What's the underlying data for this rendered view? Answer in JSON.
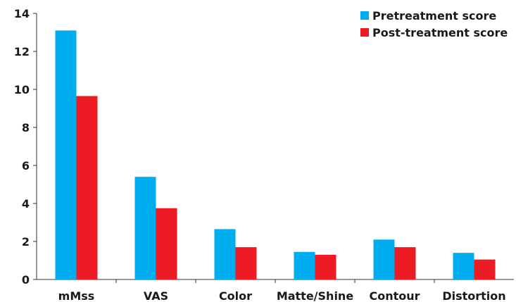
{
  "chart_data": {
    "type": "bar",
    "title": "",
    "xlabel": "",
    "ylabel": "",
    "categories": [
      "mMss",
      "VAS",
      "Color",
      "Matte/Shine",
      "Contour",
      "Distortion"
    ],
    "series": [
      {
        "name": "Pretreatment score",
        "color": "#00aeef",
        "values": [
          13.1,
          5.4,
          2.65,
          1.45,
          2.1,
          1.4
        ]
      },
      {
        "name": "Post-treatment score",
        "color": "#ed1c24",
        "values": [
          9.65,
          3.75,
          1.7,
          1.3,
          1.7,
          1.05
        ]
      }
    ],
    "ylim": [
      0,
      14
    ],
    "yticks": [
      0,
      2,
      4,
      6,
      8,
      10,
      12,
      14
    ],
    "grid": false,
    "legend_position": "top-right"
  }
}
